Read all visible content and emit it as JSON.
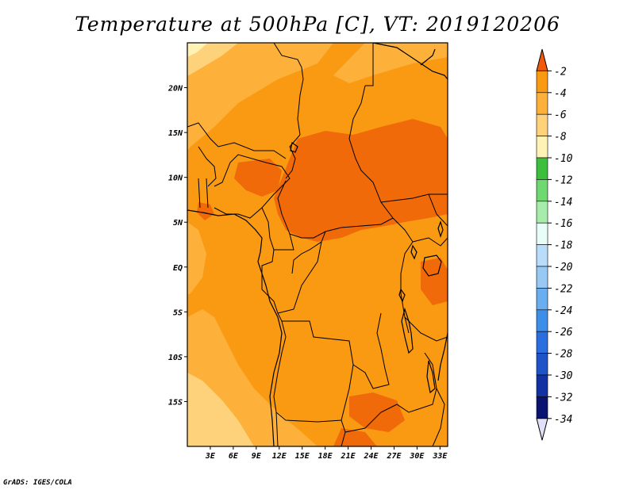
{
  "title": "Temperature at 500hPa [C], VT: 2019120206",
  "credit": "GrADS: IGES/COLA",
  "map": {
    "lon_range": [
      0,
      34
    ],
    "lat_range": [
      -20,
      25
    ],
    "lat_ticks": [
      {
        "value": 20,
        "label": "20N"
      },
      {
        "value": 15,
        "label": "15N"
      },
      {
        "value": 10,
        "label": "10N"
      },
      {
        "value": 5,
        "label": "5N"
      },
      {
        "value": 0,
        "label": "EQ"
      },
      {
        "value": -5,
        "label": "5S"
      },
      {
        "value": -10,
        "label": "10S"
      },
      {
        "value": -15,
        "label": "15S"
      }
    ],
    "lon_ticks": [
      {
        "value": 3,
        "label": "3E"
      },
      {
        "value": 6,
        "label": "6E"
      },
      {
        "value": 9,
        "label": "9E"
      },
      {
        "value": 12,
        "label": "12E"
      },
      {
        "value": 15,
        "label": "15E"
      },
      {
        "value": 18,
        "label": "18E"
      },
      {
        "value": 21,
        "label": "21E"
      },
      {
        "value": 24,
        "label": "24E"
      },
      {
        "value": 27,
        "label": "27E"
      },
      {
        "value": 30,
        "label": "30E"
      },
      {
        "value": 33,
        "label": "33E"
      }
    ],
    "fill_colors": {
      "range_-8_-6": "#fdb13a",
      "range_-6_-4": "#f99a12",
      "range_-4_-2": "#f06a0a",
      "range_-10_-8": "#fdd27a",
      "range_-12_-10": "#fef2b4"
    }
  },
  "colorbar": {
    "labels": [
      "-2",
      "-4",
      "-6",
      "-8",
      "-10",
      "-12",
      "-14",
      "-16",
      "-18",
      "-20",
      "-22",
      "-24",
      "-26",
      "-28",
      "-30",
      "-32",
      "-34"
    ],
    "colors": [
      "#f05a0a",
      "#f99a12",
      "#fdb13a",
      "#fdd27a",
      "#fef2b4",
      "#3cbf3c",
      "#70d870",
      "#a8ecac",
      "#e8fdf8",
      "#b8dcfa",
      "#98c8f4",
      "#6aaef0",
      "#3c8ee8",
      "#2a6ee0",
      "#1e54c8",
      "#1232a4",
      "#0a1470",
      "#e0e0f8"
    ]
  }
}
